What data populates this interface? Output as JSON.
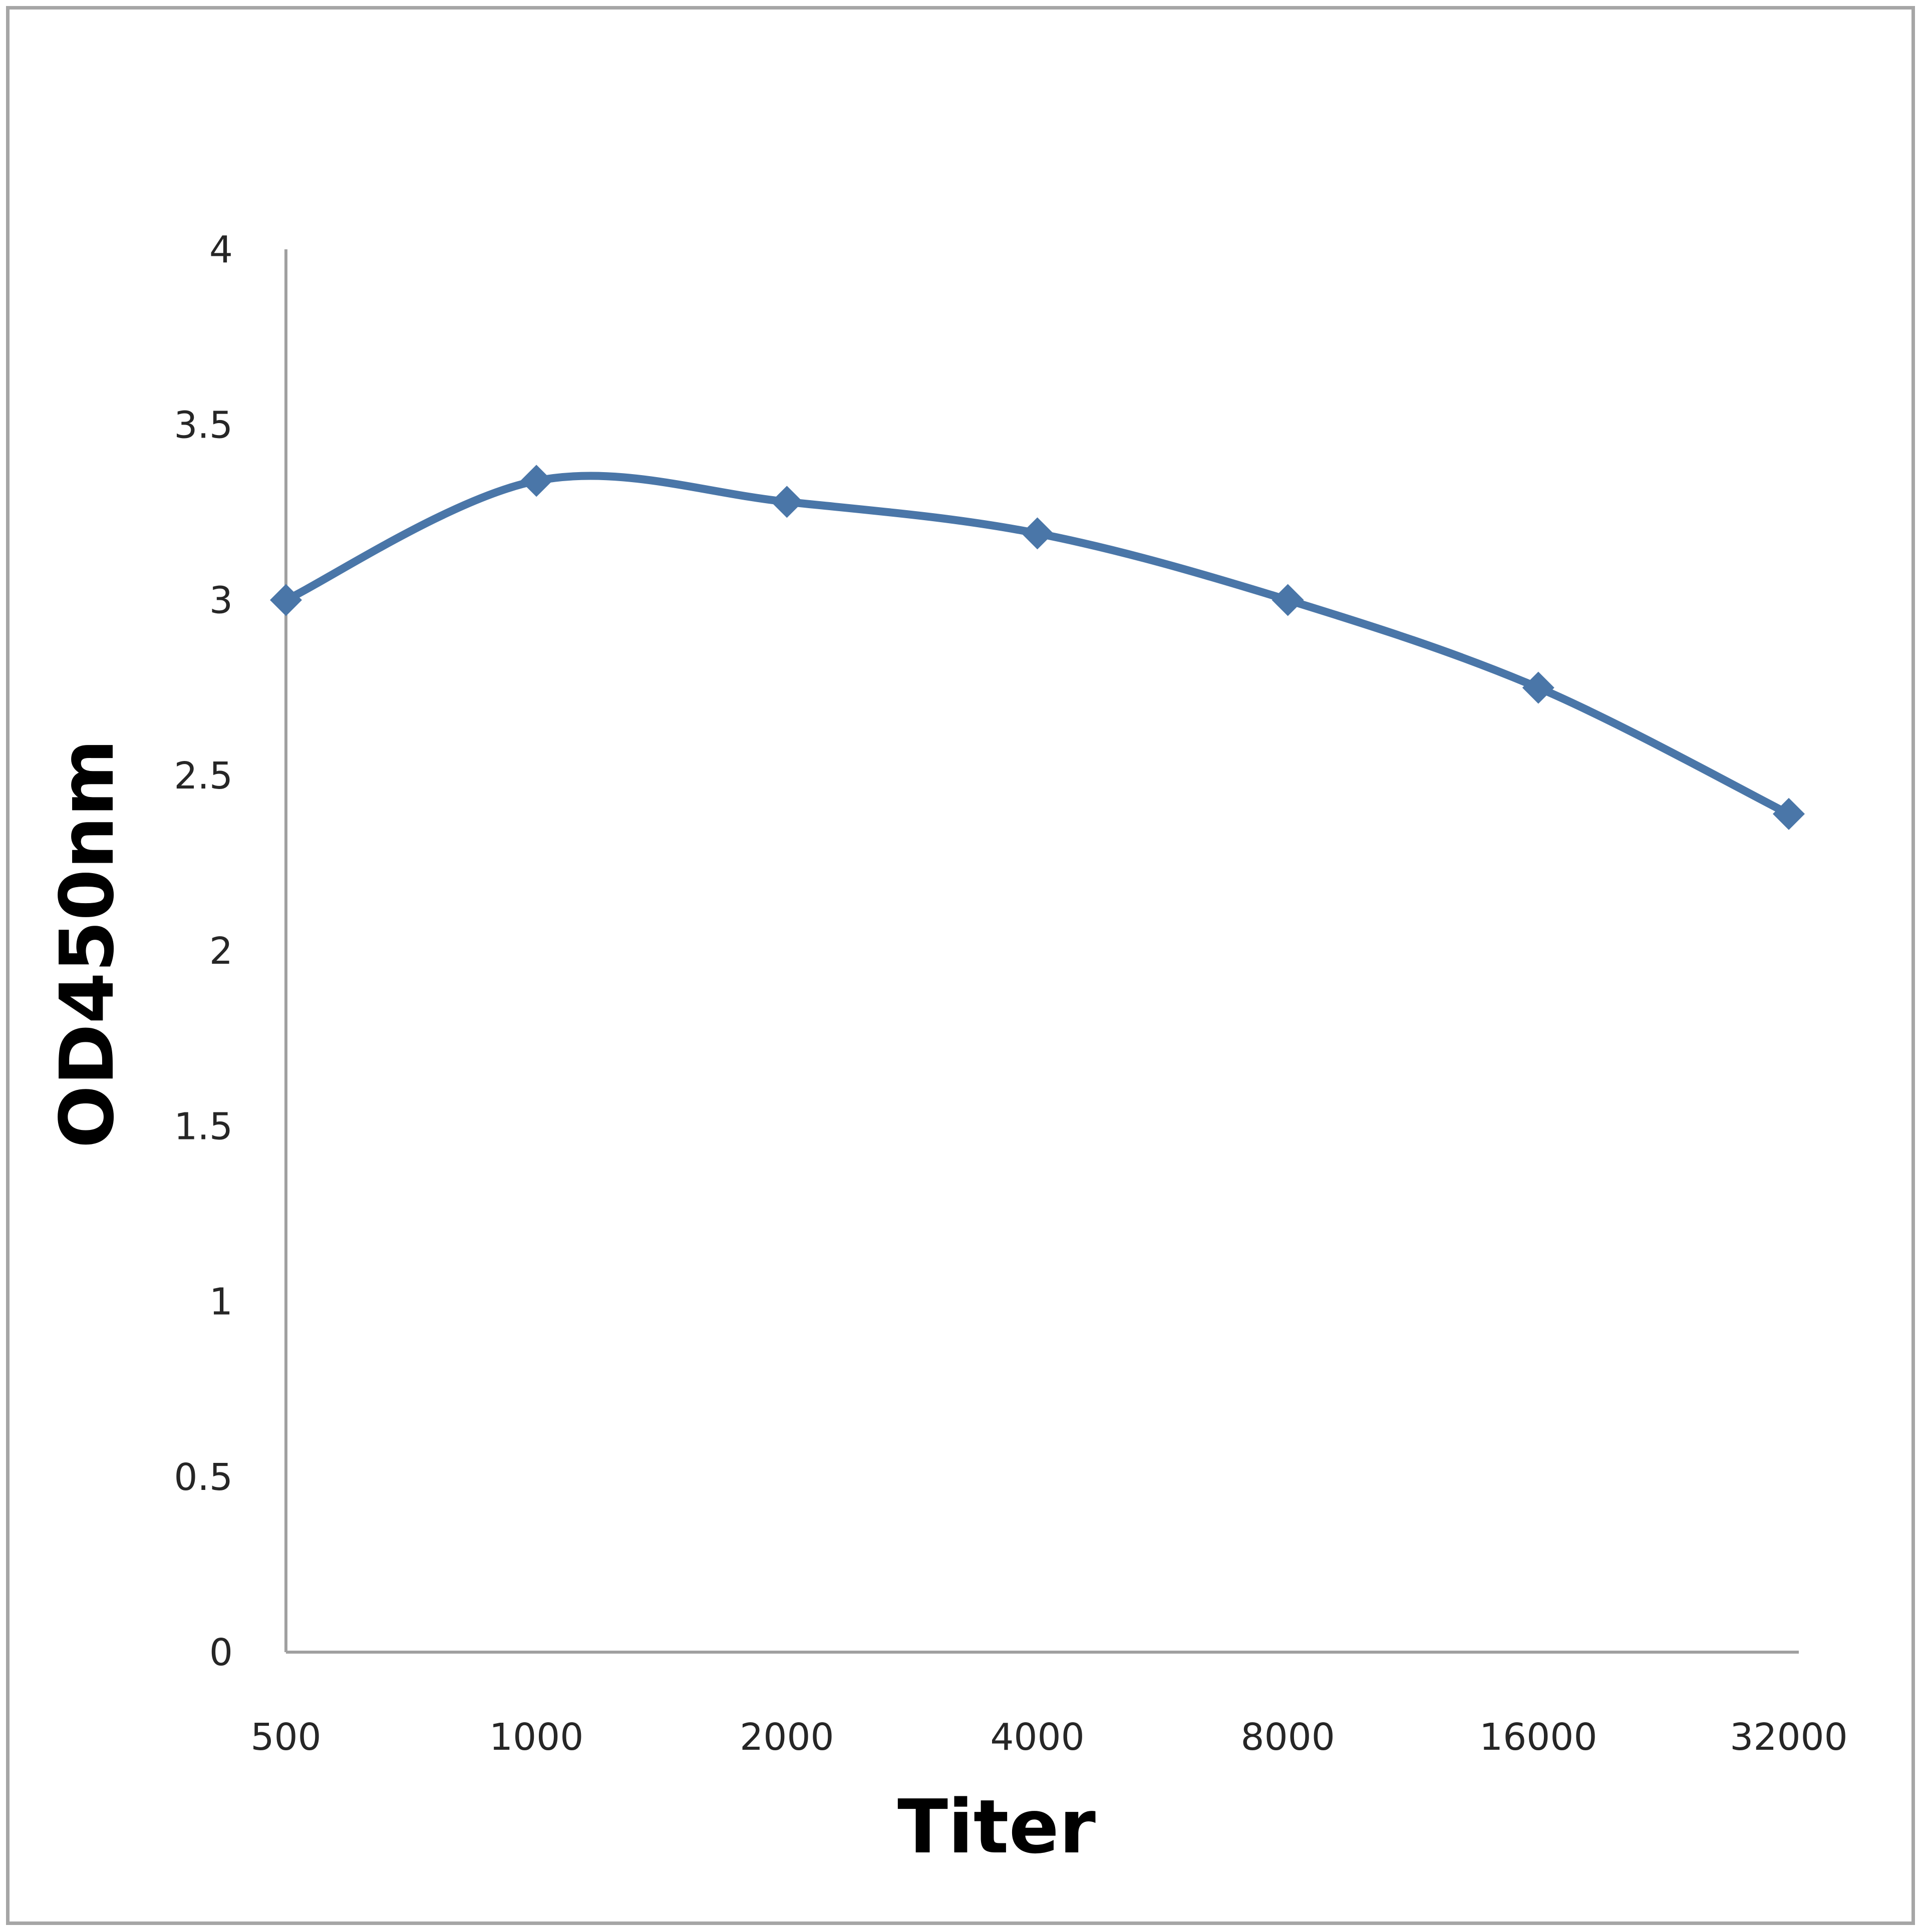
{
  "chart_data": {
    "type": "line",
    "title": "",
    "xlabel": "Titer",
    "ylabel": "OD450nm",
    "categories": [
      "500",
      "1000",
      "2000",
      "4000",
      "8000",
      "16000",
      "32000"
    ],
    "series": [
      {
        "name": "OD450nm",
        "values": [
          3.0,
          3.34,
          3.28,
          3.19,
          3.0,
          2.75,
          2.39
        ],
        "color": "#4a76a8",
        "marker": "diamond",
        "smooth": true
      }
    ],
    "yticks": [
      "0",
      "0.5",
      "1",
      "1.5",
      "2",
      "2.5",
      "3",
      "3.5",
      "4"
    ],
    "ylim": [
      0,
      4
    ],
    "grid": false,
    "legend": "none"
  }
}
